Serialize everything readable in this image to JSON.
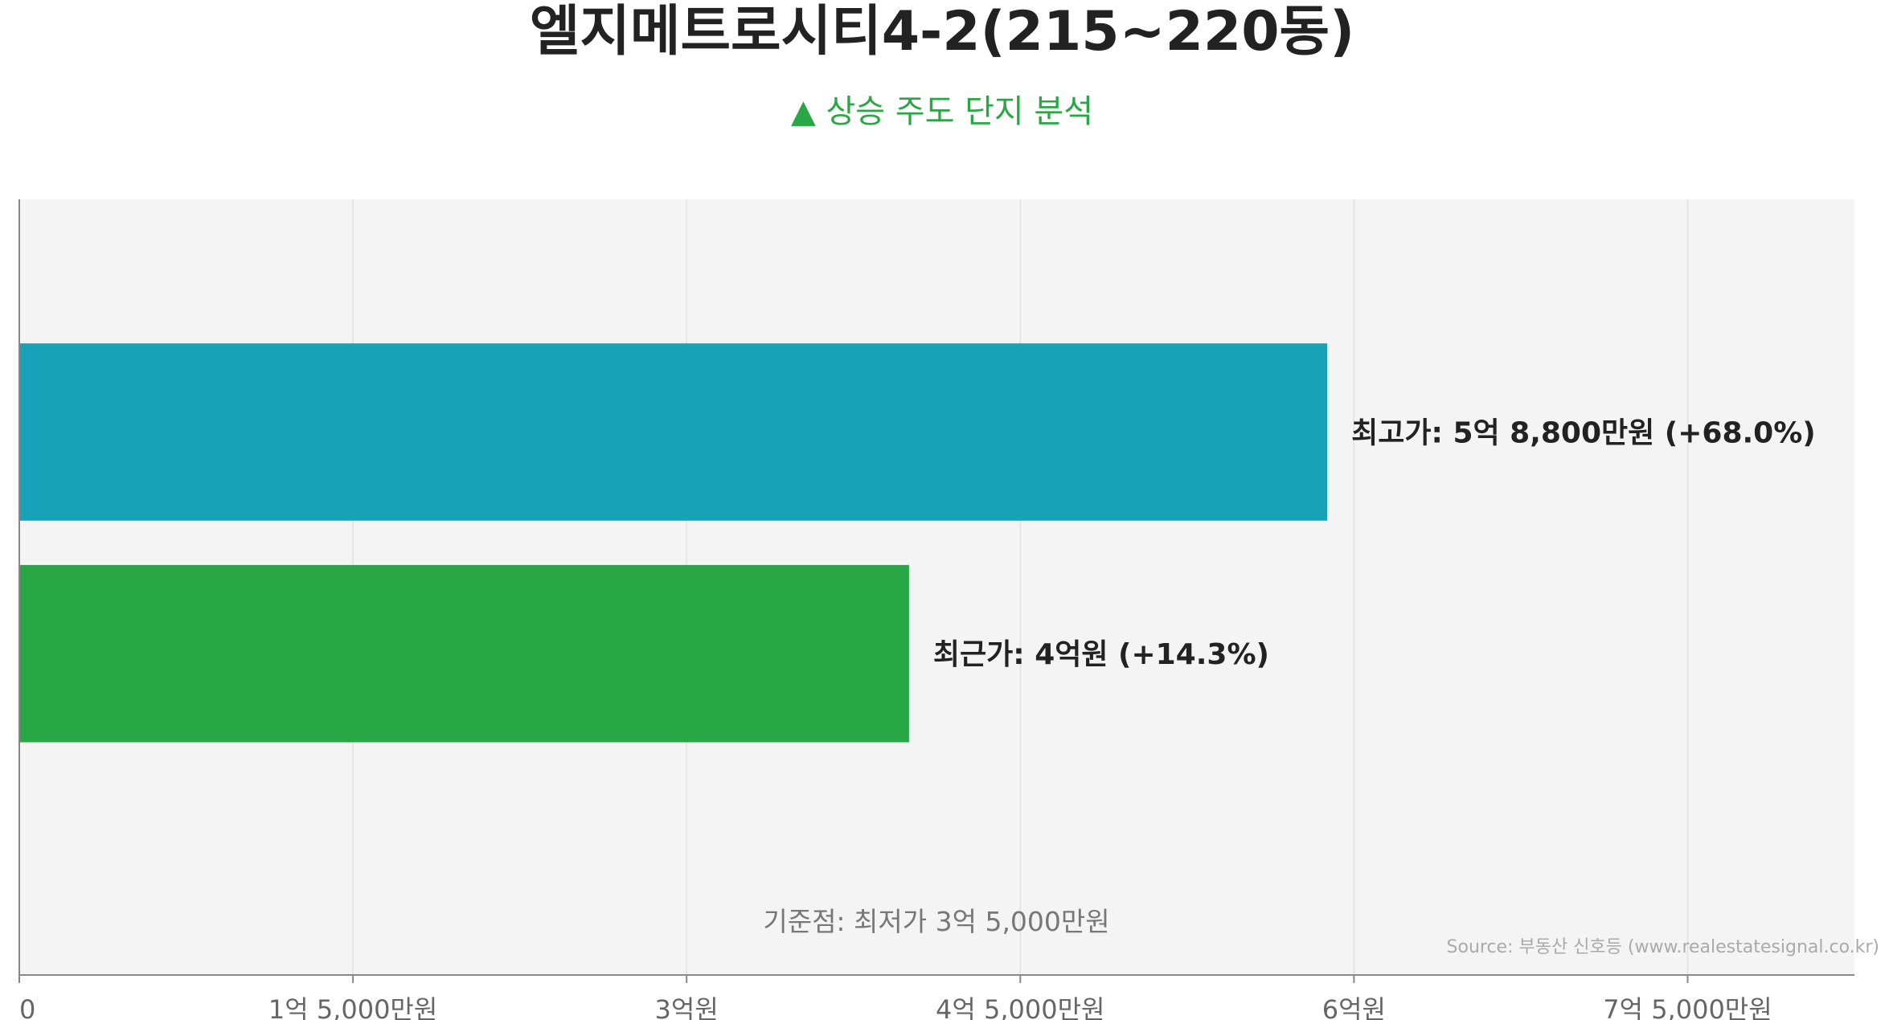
{
  "chart_data": {
    "type": "bar",
    "orientation": "horizontal",
    "title": "엘지메트로시티4-2(215~220동)",
    "subtitle": "▲ 상승 주도 단지 분석",
    "bars": [
      {
        "value": 58800,
        "label": "최고가: 5억 8,800만원 (+68.0%)",
        "color": "#17a2b8"
      },
      {
        "value": 40000,
        "label": "최근가: 4억원 (+14.3%)",
        "color": "#28a745"
      }
    ],
    "baseline_note": "기준점: 최저가 3억 5,000만원",
    "xlim": [
      0,
      82500
    ],
    "x_ticks": [
      {
        "value": 0,
        "label": "0"
      },
      {
        "value": 15000,
        "label": "1억 5,000만원"
      },
      {
        "value": 30000,
        "label": "3억원"
      },
      {
        "value": 45000,
        "label": "4억 5,000만원"
      },
      {
        "value": 60000,
        "label": "6억원"
      },
      {
        "value": 75000,
        "label": "7억 5,000만원"
      }
    ],
    "grid": true,
    "source": "Source: 부동산 신호등 (www.realestatesignal.co.kr)",
    "colors": {
      "plot_background": "#f4f4f4",
      "grid": "#e2e2e2",
      "axis": "#888888"
    }
  }
}
